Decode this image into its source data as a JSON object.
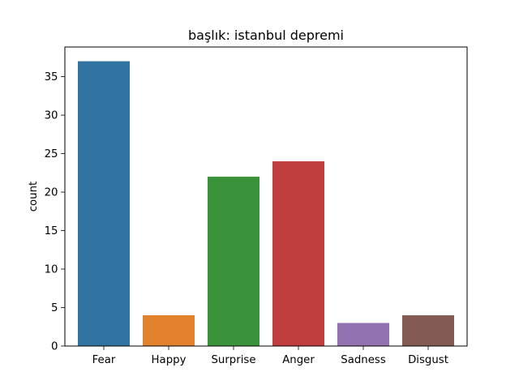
{
  "chart_data": {
    "type": "bar",
    "title": "başlık: istanbul depremi",
    "xlabel": "",
    "ylabel": "count",
    "categories": [
      "Fear",
      "Happy",
      "Surprise",
      "Anger",
      "Sadness",
      "Disgust"
    ],
    "values": [
      37,
      4,
      22,
      24,
      3,
      4
    ],
    "colors": [
      "#3274a1",
      "#e1812c",
      "#3a923a",
      "#c03d3e",
      "#9372b2",
      "#845b53"
    ],
    "ylim": [
      0,
      38.85
    ],
    "yticks": [
      0,
      5,
      10,
      15,
      20,
      25,
      30,
      35
    ],
    "grid": false,
    "legend": "none"
  }
}
